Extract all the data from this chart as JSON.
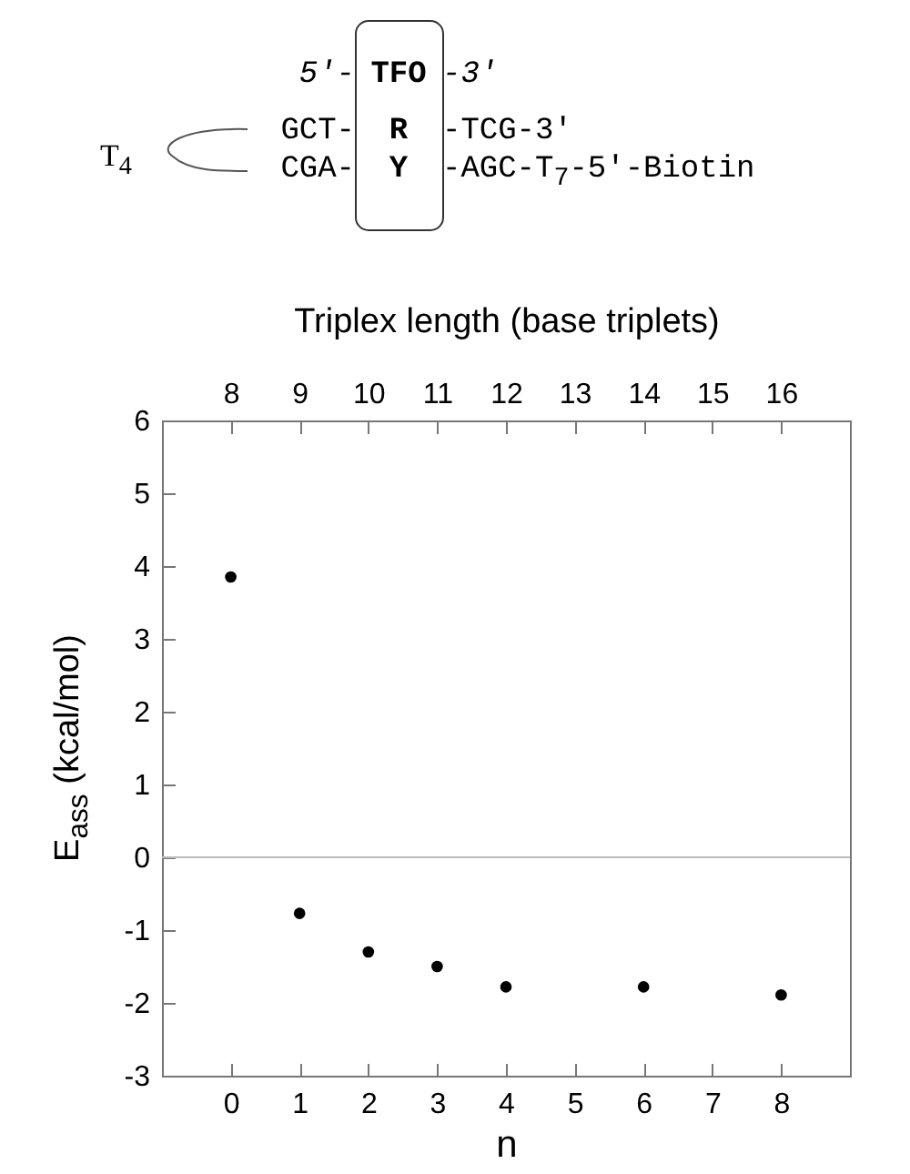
{
  "chart_data": {
    "type": "scatter",
    "xlabel": "n",
    "ylabel": "E$_{ass}$ (kcal/mol)",
    "x2label": "Triplex length (base triplets)",
    "x": [
      0,
      1,
      2,
      3,
      4,
      6,
      8
    ],
    "series": [
      {
        "color": "#000000",
        "values": [
          3.85,
          -0.77,
          -1.3,
          -1.5,
          -1.78,
          -1.78,
          -1.89
        ]
      }
    ],
    "xlim": [
      -1,
      9
    ],
    "xticks": [
      0,
      1,
      2,
      3,
      4,
      5,
      6,
      7,
      8
    ],
    "x2lim": [
      7,
      17
    ],
    "x2ticks": [
      8,
      9,
      10,
      11,
      12,
      13,
      14,
      15,
      16
    ],
    "ylim": [
      -3,
      6
    ],
    "yticks": [
      -3,
      -2,
      -1,
      0,
      1,
      2,
      3,
      4,
      5,
      6
    ],
    "ref_lines": [
      {
        "axis": "y",
        "value": 0,
        "color": "#bbbbbb"
      }
    ],
    "marker": "circle",
    "grid": false,
    "annotations": [
      "5′-",
      "TFO",
      "-3′",
      "GCT-",
      "R",
      "-TCG-3′",
      "CGA-",
      "Y",
      "-AGC-T$_{7}$-5′-Biotin",
      "T$_{4}$"
    ]
  }
}
